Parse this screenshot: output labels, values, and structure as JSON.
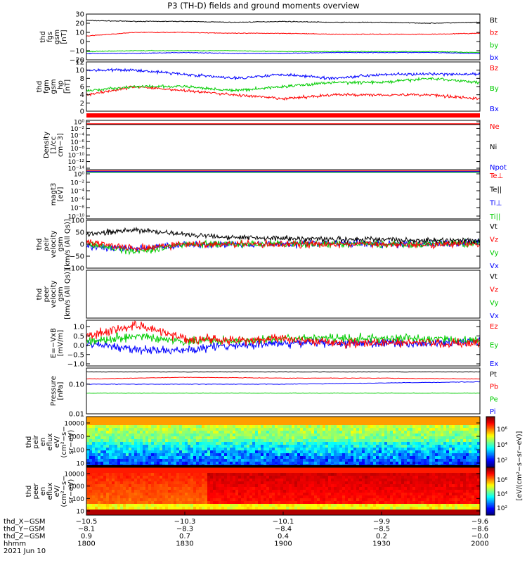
{
  "title": "P3 (TH-D) fields and ground moments overview",
  "colors": {
    "black": "#000000",
    "red": "#ff0000",
    "green": "#00cc00",
    "blue": "#0000ff"
  },
  "panels": [
    {
      "id": "fgs",
      "ylabel": [
        "thd",
        "fgs",
        "gsm",
        "[nT]"
      ],
      "yticks": [
        "30",
        "20",
        "10",
        "0",
        "−10",
        "−20"
      ],
      "legend": [
        "Bt",
        "bz",
        "by",
        "bx"
      ]
    },
    {
      "id": "fgm",
      "ylabel": [
        "thd",
        "fgm",
        "gsm",
        "_hp",
        "[nT]"
      ],
      "yticks": [
        "12",
        "10",
        "8",
        "6",
        "4",
        "2",
        "0"
      ],
      "legend": [
        "Bz",
        "By",
        "Bx"
      ]
    },
    {
      "id": "density",
      "ylabel": [
        "Density",
        "[1/cc",
        "cm−3]"
      ],
      "yticks": [
        "10⁰",
        "10⁻²",
        "10⁻⁴",
        "10⁻⁶",
        "10⁻⁸",
        "10⁻¹⁰",
        "10⁻¹²",
        "10⁻¹⁴"
      ],
      "legend": [
        "Ne",
        "Ni",
        "Npot"
      ]
    },
    {
      "id": "temp",
      "ylabel": [
        "magt3",
        "[eV]"
      ],
      "yticks": [
        "10⁰",
        "10⁻²",
        "10⁻⁴",
        "10⁻⁶",
        "10⁻⁸",
        "10⁻¹⁰"
      ],
      "legend": [
        "Te⊥",
        "Te||",
        "Ti⊥",
        "Ti||"
      ]
    },
    {
      "id": "peir_v",
      "ylabel": [
        "thd",
        "peir",
        "velocity",
        "gsm",
        "[km/s (All Qs)]"
      ],
      "yticks": [
        "100",
        "50",
        "0",
        "−50",
        "−100"
      ],
      "legend": [
        "Vt",
        "Vz",
        "Vy",
        "Vx"
      ]
    },
    {
      "id": "peer_v",
      "ylabel": [
        "thd",
        "peer",
        "velocity",
        "gsm",
        "[km/s (All Qs)]"
      ],
      "yticks": [],
      "legend": [
        "Vt",
        "Vz",
        "Vy",
        "Vx"
      ]
    },
    {
      "id": "efield",
      "ylabel": [
        "E=−VxB",
        "[mV/m]"
      ],
      "yticks": [
        "1.0",
        "0.5",
        "0.0",
        "−0.5",
        "−1.0"
      ],
      "legend": [
        "Ez",
        "Ey",
        "Ex"
      ]
    },
    {
      "id": "pressure",
      "ylabel": [
        "Pressure",
        "[nPa]"
      ],
      "yticks": [
        "0.10",
        "0.01"
      ],
      "legend": [
        "Pt",
        "Pb",
        "Pe",
        "Pi"
      ]
    },
    {
      "id": "peir_spec",
      "ylabel": [
        "thd",
        "peir",
        "en",
        "eflux",
        "eV/",
        "(cm²−s−",
        "sr−eV)"
      ],
      "yticks": [
        "10000",
        "1000",
        "100",
        "10"
      ],
      "legend": []
    },
    {
      "id": "peer_spec",
      "ylabel": [
        "thd",
        "peer",
        "en",
        "eflux",
        "eV/",
        "(cm²−s−",
        "sr−eV)"
      ],
      "yticks": [
        "10000",
        "1000",
        "100",
        "10"
      ],
      "legend": []
    }
  ],
  "colorbar": {
    "ticks1": [
      "10⁶",
      "10⁴",
      "10²"
    ],
    "ticks2": [
      "10⁶",
      "10⁴",
      "10²"
    ],
    "label": "[eV/(cm²−s−sr−eV)]"
  },
  "xaxis": {
    "row_labels": [
      "thd_X−GSM",
      "thd_Y−GSM",
      "thd_Z−GSM",
      "hhmm",
      "2021 Jun 10"
    ],
    "columns": [
      [
        "−10.5",
        "−8.1",
        "0.9",
        "1800"
      ],
      [
        "−10.3",
        "−8.3",
        "0.7",
        "1830"
      ],
      [
        "−10.1",
        "−8.4",
        "0.4",
        "1900"
      ],
      [
        "−9.9",
        "−8.5",
        "0.2",
        "1930"
      ],
      [
        "−9.6",
        "−8.6",
        "−0.0",
        "2000"
      ]
    ]
  },
  "chart_data": {
    "type": "line",
    "title": "P3 (TH-D) fields and ground moments overview",
    "x_time_hhmm": [
      "1800",
      "1830",
      "1900",
      "1930",
      "2000"
    ],
    "subplots": [
      {
        "name": "fgs",
        "ylim": [
          -20,
          30
        ],
        "series": [
          {
            "name": "Bt",
            "color": "#000000",
            "values": [
              23,
              22,
              22,
              21,
              22,
              21,
              21,
              20,
              21
            ]
          },
          {
            "name": "bz",
            "color": "#ff0000",
            "values": [
              6,
              10,
              10,
              9,
              9,
              8,
              8,
              8,
              9
            ]
          },
          {
            "name": "by",
            "color": "#00cc00",
            "values": [
              -11,
              -10,
              -10,
              -10,
              -11,
              -11,
              -11,
              -11,
              -12
            ]
          },
          {
            "name": "bx",
            "color": "#0000ff",
            "values": [
              -13,
              -13,
              -12,
              -13,
              -13,
              -12,
              -12,
              -12,
              -13
            ]
          }
        ]
      },
      {
        "name": "fgm",
        "ylim": [
          0,
          12
        ],
        "series": [
          {
            "name": "Bz",
            "color": "#ff0000",
            "values": [
              4,
              6,
              5,
              4,
              3,
              4,
              4,
              4,
              3
            ]
          },
          {
            "name": "By",
            "color": "#00cc00",
            "values": [
              5,
              6,
              6,
              5,
              6,
              7,
              7,
              8,
              7
            ]
          },
          {
            "name": "Bx",
            "color": "#0000ff",
            "values": [
              10,
              10,
              9,
              8,
              9,
              8,
              9,
              9,
              9
            ]
          }
        ]
      },
      {
        "name": "velocity",
        "ylim": [
          -100,
          100
        ],
        "series": [
          {
            "name": "Vt",
            "color": "#000000",
            "values": [
              40,
              60,
              40,
              30,
              25,
              20,
              20,
              15,
              15
            ]
          },
          {
            "name": "Vz",
            "color": "#ff0000",
            "values": [
              10,
              -20,
              0,
              0,
              0,
              0,
              0,
              0,
              5
            ]
          },
          {
            "name": "Vy",
            "color": "#00cc00",
            "values": [
              0,
              -30,
              0,
              0,
              0,
              0,
              0,
              0,
              5
            ]
          },
          {
            "name": "Vx",
            "color": "#0000ff",
            "values": [
              -10,
              -20,
              0,
              0,
              0,
              5,
              0,
              0,
              10
            ]
          }
        ]
      },
      {
        "name": "efield",
        "ylim": [
          -1,
          1
        ],
        "series": [
          {
            "name": "Ez",
            "color": "#ff0000",
            "values": [
              0.3,
              0.8,
              0.2,
              0.1,
              0.2,
              0.0,
              0.0,
              0.0,
              0.0
            ]
          },
          {
            "name": "Ey",
            "color": "#00cc00",
            "values": [
              0.1,
              0.3,
              0.1,
              0.1,
              0.2,
              0.2,
              0.2,
              0.2,
              0.1
            ]
          },
          {
            "name": "Ex",
            "color": "#0000ff",
            "values": [
              0.0,
              -0.3,
              -0.3,
              -0.1,
              0.0,
              0.0,
              0.0,
              0.0,
              0.1
            ]
          }
        ]
      },
      {
        "name": "pressure",
        "series": [
          {
            "name": "Pt",
            "color": "#000000",
            "values": [
              0.26,
              0.26,
              0.26,
              0.26,
              0.26
            ]
          },
          {
            "name": "Pb",
            "color": "#ff0000",
            "values": [
              0.15,
              0.17,
              0.16,
              0.16,
              0.15
            ]
          },
          {
            "name": "Pe",
            "color": "#00cc00",
            "values": [
              0.05,
              0.05,
              0.05,
              0.05,
              0.05
            ]
          },
          {
            "name": "Pi",
            "color": "#0000ff",
            "values": [
              0.1,
              0.1,
              0.1,
              0.11,
              0.12
            ]
          }
        ]
      }
    ]
  }
}
